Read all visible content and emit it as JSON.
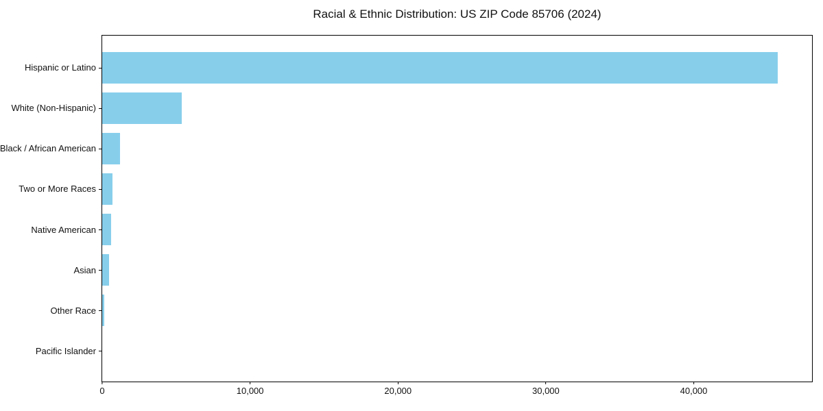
{
  "chart_data": {
    "type": "bar",
    "orientation": "horizontal",
    "title": "Racial & Ethnic Distribution: US ZIP Code 85706 (2024)",
    "categories": [
      "Hispanic or Latino",
      "White (Non-Hispanic)",
      "Black / African American",
      "Two or More Races",
      "Native American",
      "Asian",
      "Other Race",
      "Pacific Islander"
    ],
    "values": [
      45700,
      5400,
      1200,
      680,
      620,
      480,
      160,
      0
    ],
    "xlabel": "",
    "ylabel": "",
    "xlim": [
      0,
      48000
    ],
    "xticks": [
      {
        "value": 0,
        "label": "0"
      },
      {
        "value": 10000,
        "label": "10,000"
      },
      {
        "value": 20000,
        "label": "20,000"
      },
      {
        "value": 30000,
        "label": "30,000"
      },
      {
        "value": 40000,
        "label": "40,000"
      }
    ],
    "grid": false,
    "legend": false,
    "bar_color": "#87CEEB",
    "axis_color": "#000000",
    "text_color": "#111111",
    "background_color": "#FFFFFF"
  }
}
